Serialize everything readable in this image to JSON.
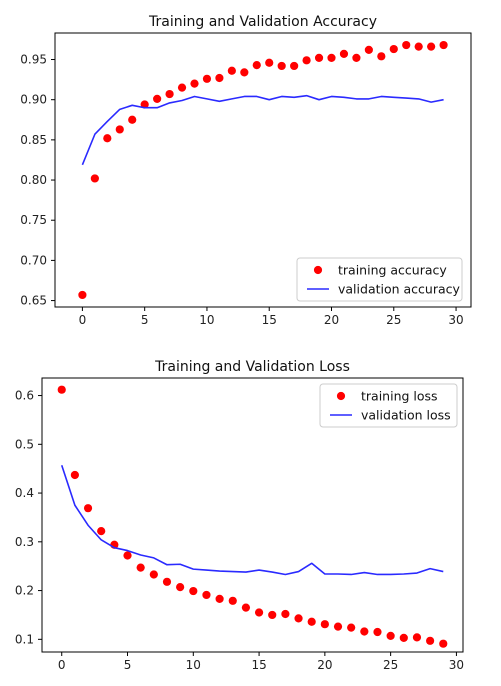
{
  "chart_data": [
    {
      "type": "line",
      "title": "Training and Validation Accuracy",
      "xlabel": "",
      "ylabel": "",
      "xlim": [
        -2.2,
        31.2
      ],
      "ylim": [
        0.642,
        0.983
      ],
      "xticks": [
        0,
        5,
        10,
        15,
        20,
        25,
        30
      ],
      "yticks": [
        0.65,
        0.7,
        0.75,
        0.8,
        0.85,
        0.9,
        0.95
      ],
      "ytick_format": 2,
      "grid": false,
      "legend_position": "lower-right",
      "series": [
        {
          "name": "training accuracy",
          "style": "markers",
          "color": "#ff0000",
          "x": [
            0,
            1,
            2,
            3,
            4,
            5,
            6,
            7,
            8,
            9,
            10,
            11,
            12,
            13,
            14,
            15,
            16,
            17,
            18,
            19,
            20,
            21,
            22,
            23,
            24,
            25,
            26,
            27,
            28,
            29
          ],
          "y": [
            0.657,
            0.802,
            0.852,
            0.863,
            0.875,
            0.894,
            0.901,
            0.907,
            0.915,
            0.92,
            0.926,
            0.927,
            0.936,
            0.934,
            0.943,
            0.946,
            0.942,
            0.942,
            0.949,
            0.952,
            0.952,
            0.957,
            0.952,
            0.962,
            0.954,
            0.963,
            0.968,
            0.966,
            0.966,
            0.968
          ]
        },
        {
          "name": "validation accuracy",
          "style": "line",
          "color": "#2a2aff",
          "x": [
            0,
            1,
            2,
            3,
            4,
            5,
            6,
            7,
            8,
            9,
            10,
            11,
            12,
            13,
            14,
            15,
            16,
            17,
            18,
            19,
            20,
            21,
            22,
            23,
            24,
            25,
            26,
            27,
            28,
            29
          ],
          "y": [
            0.819,
            0.857,
            0.873,
            0.888,
            0.893,
            0.89,
            0.89,
            0.896,
            0.899,
            0.904,
            0.901,
            0.898,
            0.901,
            0.904,
            0.904,
            0.9,
            0.904,
            0.903,
            0.905,
            0.9,
            0.904,
            0.903,
            0.901,
            0.901,
            0.904,
            0.903,
            0.902,
            0.901,
            0.897,
            0.9
          ]
        }
      ]
    },
    {
      "type": "line",
      "title": "Training and Validation Loss",
      "xlabel": "",
      "ylabel": "",
      "xlim": [
        -1.5,
        30.5
      ],
      "ylim": [
        0.074,
        0.636
      ],
      "xticks": [
        0,
        5,
        10,
        15,
        20,
        25,
        30
      ],
      "yticks": [
        0.1,
        0.2,
        0.3,
        0.4,
        0.5,
        0.6
      ],
      "ytick_format": 1,
      "grid": false,
      "legend_position": "upper-right",
      "series": [
        {
          "name": "training loss",
          "style": "markers",
          "color": "#ff0000",
          "x": [
            0,
            1,
            2,
            3,
            4,
            5,
            6,
            7,
            8,
            9,
            10,
            11,
            12,
            13,
            14,
            15,
            16,
            17,
            18,
            19,
            20,
            21,
            22,
            23,
            24,
            25,
            26,
            27,
            28,
            29
          ],
          "y": [
            0.612,
            0.437,
            0.369,
            0.322,
            0.294,
            0.272,
            0.247,
            0.233,
            0.218,
            0.207,
            0.199,
            0.191,
            0.183,
            0.179,
            0.165,
            0.155,
            0.15,
            0.152,
            0.143,
            0.136,
            0.131,
            0.126,
            0.124,
            0.116,
            0.115,
            0.107,
            0.103,
            0.104,
            0.097,
            0.091
          ]
        },
        {
          "name": "validation loss",
          "style": "line",
          "color": "#2a2aff",
          "x": [
            0,
            1,
            2,
            3,
            4,
            5,
            6,
            7,
            8,
            9,
            10,
            11,
            12,
            13,
            14,
            15,
            16,
            17,
            18,
            19,
            20,
            21,
            22,
            23,
            24,
            25,
            26,
            27,
            28,
            29
          ],
          "y": [
            0.457,
            0.375,
            0.334,
            0.304,
            0.288,
            0.282,
            0.273,
            0.267,
            0.253,
            0.254,
            0.244,
            0.242,
            0.24,
            0.239,
            0.238,
            0.242,
            0.238,
            0.233,
            0.239,
            0.256,
            0.234,
            0.234,
            0.233,
            0.237,
            0.233,
            0.233,
            0.234,
            0.236,
            0.245,
            0.239
          ]
        }
      ]
    }
  ]
}
